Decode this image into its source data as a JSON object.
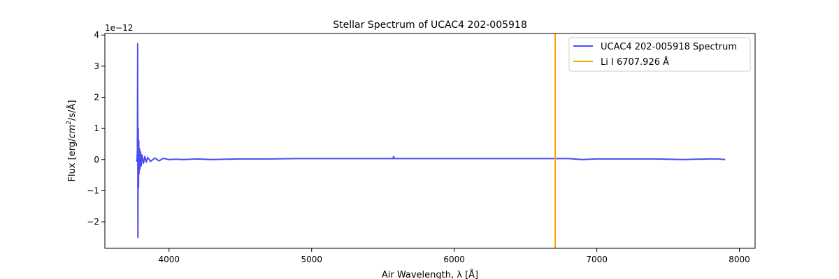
{
  "chart_data": {
    "type": "line",
    "title": "Stellar Spectrum of UCAC4 202-005918",
    "xlabel": "Air Wavelength, λ [Å]",
    "ylabel_prefix": "Flux [erg/",
    "ylabel_cm": "cm",
    "ylabel_exp": "2",
    "ylabel_suffix": "/s/Å]",
    "offset_text": "1e−12",
    "xlim": [
      3550,
      8110
    ],
    "ylim": [
      -2.85,
      4.05
    ],
    "xticks": [
      4000,
      5000,
      6000,
      7000,
      8000
    ],
    "xtick_labels": [
      "4000",
      "5000",
      "6000",
      "7000",
      "8000"
    ],
    "yticks": [
      -2,
      -1,
      0,
      1,
      2,
      3,
      4
    ],
    "ytick_labels": [
      "−2",
      "−1",
      "0",
      "1",
      "2",
      "3",
      "4"
    ],
    "grid": false,
    "legend_position": "top-right",
    "series": [
      {
        "name": "UCAC4 202-005918 Spectrum",
        "color": "#4b4bf0",
        "x": [
          3770,
          3775,
          3778,
          3780,
          3782,
          3784,
          3786,
          3788,
          3790,
          3793,
          3796,
          3800,
          3805,
          3810,
          3820,
          3830,
          3840,
          3850,
          3870,
          3900,
          3930,
          3960,
          4000,
          4050,
          4100,
          4200,
          4300,
          4400,
          4500,
          4700,
          4900,
          5100,
          5300,
          5500,
          5570,
          5575,
          5580,
          5600,
          5800,
          6000,
          6200,
          6400,
          6600,
          6800,
          6900,
          6950,
          7000,
          7200,
          7400,
          7500,
          7600,
          7700,
          7800,
          7850,
          7900
        ],
        "y": [
          0.0,
          -0.05,
          0.3,
          3.72,
          -2.5,
          1.0,
          -0.9,
          0.6,
          -0.45,
          0.35,
          -0.3,
          0.25,
          -0.2,
          0.15,
          -0.12,
          0.1,
          -0.08,
          0.07,
          -0.06,
          0.05,
          -0.04,
          0.04,
          0.0,
          0.01,
          0.0,
          0.02,
          0.0,
          0.01,
          0.02,
          0.02,
          0.03,
          0.03,
          0.03,
          0.03,
          0.03,
          0.1,
          0.03,
          0.03,
          0.03,
          0.03,
          0.03,
          0.03,
          0.03,
          0.03,
          0.0,
          0.01,
          0.02,
          0.02,
          0.02,
          0.01,
          0.0,
          0.01,
          0.02,
          0.02,
          0.0
        ]
      }
    ],
    "vline": {
      "name": "Li I 6707.926 Å",
      "x": 6707.926,
      "color": "#ffa500"
    }
  }
}
